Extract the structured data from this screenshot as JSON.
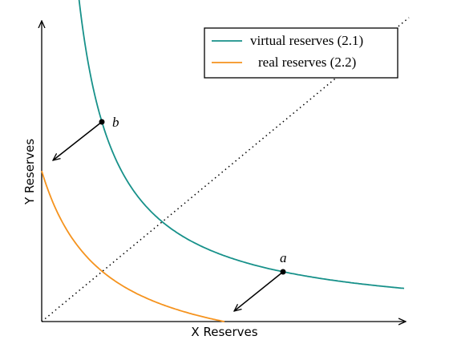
{
  "axes": {
    "x_label": "X Reserves",
    "y_label": "Y Reserves"
  },
  "legend": {
    "entries": [
      {
        "label": "virtual reserves (2.1)"
      },
      {
        "label": "real reserves (2.2)"
      }
    ]
  },
  "points": [
    {
      "label": "a"
    },
    {
      "label": "b"
    }
  ]
}
